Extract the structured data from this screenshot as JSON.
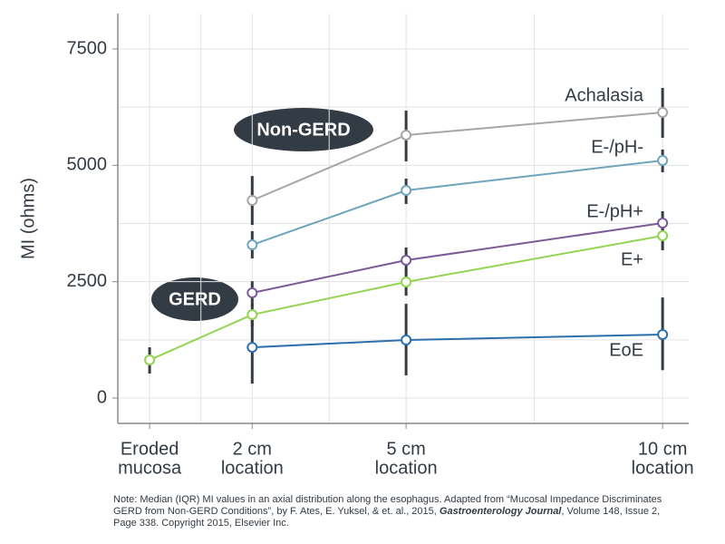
{
  "chart_data": {
    "type": "line",
    "y_label": "MI (ohms)",
    "xlim": [
      -0.62,
      10.51
    ],
    "ylim": [
      -545,
      8260
    ],
    "xticks": [
      {
        "value": 0,
        "label": [
          "Eroded",
          "mucosa"
        ]
      },
      {
        "value": 2,
        "label": [
          "2 cm",
          "location"
        ]
      },
      {
        "value": 5,
        "label": [
          "5 cm",
          "location"
        ]
      },
      {
        "value": 10,
        "label": [
          "10 cm",
          "location"
        ]
      }
    ],
    "yticks": [
      0,
      2500,
      5000,
      7500
    ],
    "x_minor_grid": [
      1,
      3.5,
      7.5
    ],
    "y_minor_grid": [
      1250,
      3750,
      6250
    ],
    "grid": true,
    "error_bar_color": "#333b44",
    "series": [
      {
        "name": "Achalasia",
        "color": "#a6a6a6",
        "x": [
          2,
          5,
          10
        ],
        "values": [
          4247,
          5650,
          6137
        ],
        "lower": [
          3720,
          5085,
          5590
        ],
        "upper": [
          4770,
          6175,
          6663
        ]
      },
      {
        "name": "E-/pH-",
        "color": "#6ea5bd",
        "x": [
          2,
          5,
          10
        ],
        "values": [
          3292,
          4461,
          5104
        ],
        "lower": [
          3000,
          4170,
          4850
        ],
        "upper": [
          3585,
          4715,
          5340
        ]
      },
      {
        "name": "E-/pH+",
        "color": "#7b5b96",
        "x": [
          2,
          5,
          10
        ],
        "values": [
          2260,
          2961,
          3760
        ],
        "lower": [
          1970,
          2710,
          3450
        ],
        "upper": [
          2510,
          3235,
          4015
        ]
      },
      {
        "name": "E+",
        "color": "#93d452",
        "x": [
          0,
          2,
          5,
          10
        ],
        "values": [
          818,
          1792,
          2494,
          3487
        ],
        "lower": [
          525,
          1540,
          2200,
          3175
        ],
        "upper": [
          1090,
          2025,
          2765,
          3680
        ]
      },
      {
        "name": "EoE",
        "color": "#2b70ad",
        "x": [
          2,
          5,
          10
        ],
        "values": [
          1090,
          1247,
          1364
        ],
        "lower": [
          310,
          487,
          600
        ],
        "upper": [
          1675,
          2025,
          2160
        ]
      }
    ],
    "annotations": [
      "Non-GERD",
      "GERD"
    ],
    "note": [
      "Note: Median (IQR) MI values in an axial distribution along the esophagus. Adapted from “Mucosal Impedance Discriminates GERD from Non-GERD Conditions”, by F. Ates, E. Yuksel, & et. al., 2015, ",
      "Gastroenterology Journal",
      ", Volume 148, Issue 2, Page 338. Copyright 2015, Elsevier Inc."
    ]
  }
}
